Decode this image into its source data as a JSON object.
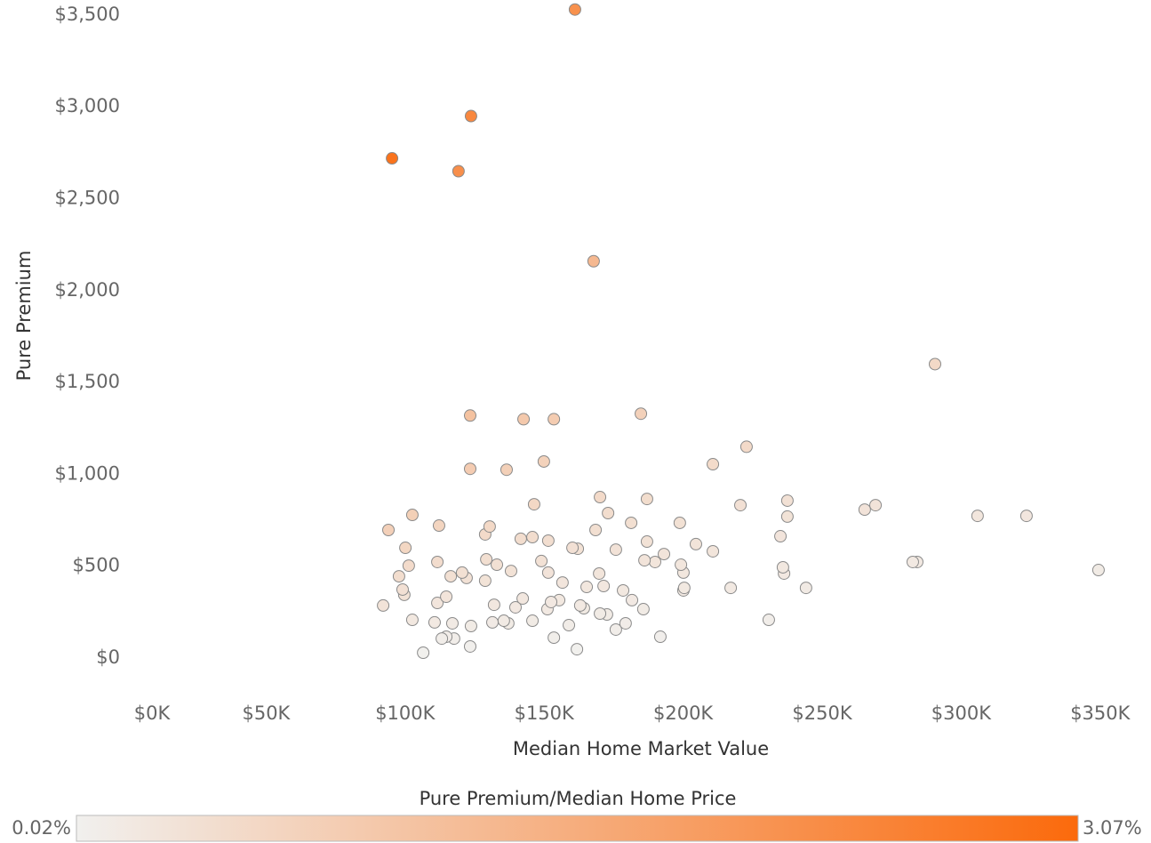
{
  "chart_data": {
    "type": "scatter",
    "x_label": "Median Home Market Value",
    "y_label": "Pure Premium",
    "x": [
      161100,
      123700,
      95300,
      119200,
      167800,
      290600,
      123400,
      142600,
      153500,
      184800,
      222800,
      123400,
      136500,
      149900,
      210700,
      170100,
      187000,
      146400,
      173000,
      237500,
      220600,
      265300,
      269200,
      102600,
      130400,
      112200,
      181300,
      198800,
      237500,
      305900,
      323500,
      94000,
      128800,
      141600,
      145800,
      151500,
      187000,
      168500,
      160200,
      162100,
      100100,
      175800,
      204600,
      210700,
      235000,
      193100,
      111600,
      129200,
      133000,
      149000,
      186100,
      189900,
      199200,
      101300,
      282600,
      284200,
      120500,
      122100,
      116400,
      128800,
      138100,
      151500,
      169800,
      200100,
      235900,
      236300,
      349400,
      97800,
      99100,
      99700,
      156600,
      165300,
      171400,
      178400,
      200400,
      200100,
      217100,
      244200,
      142300,
      114800,
      92100,
      111600,
      132000,
      139700,
      152500,
      155400,
      151200,
      163000,
      164300,
      181600,
      185700,
      170100,
      172600,
      102600,
      110600,
      117000,
      131400,
      135500,
      137100,
      145800,
      158900,
      179300,
      230800,
      123700,
      175800,
      113200,
      114800,
      117600,
      153500,
      191800,
      123400,
      106500,
      161800
    ],
    "values": [
      3530,
      2950,
      2720,
      2650,
      2160,
      1600,
      1320,
      1300,
      1300,
      1330,
      1150,
      1030,
      1025,
      1070,
      1055,
      876,
      866,
      837,
      789,
      857,
      832,
      808,
      832,
      779,
      716,
      721,
      736,
      736,
      770,
      774,
      774,
      697,
      673,
      649,
      658,
      639,
      634,
      697,
      600,
      595,
      600,
      590,
      620,
      581,
      663,
      566,
      523,
      537,
      508,
      528,
      532,
      523,
      508,
      503,
      523,
      523,
      465,
      436,
      445,
      421,
      474,
      465,
      460,
      465,
      494,
      460,
      479,
      445,
      373,
      344,
      411,
      387,
      392,
      368,
      382,
      368,
      382,
      382,
      324,
      334,
      286,
      300,
      290,
      276,
      305,
      315,
      266,
      286,
      271,
      315,
      266,
      242,
      237,
      208,
      194,
      189,
      194,
      203,
      189,
      203,
      179,
      189,
      208,
      174,
      155,
      106,
      116,
      106,
      111,
      116,
      63,
      29,
      48
    ],
    "xlim": [
      0,
      355000
    ],
    "ylim": [
      -200,
      3550
    ],
    "xticks": [
      {
        "value": 0,
        "label": "$0K"
      },
      {
        "value": 50000,
        "label": "$50K"
      },
      {
        "value": 100000,
        "label": "$100K"
      },
      {
        "value": 150000,
        "label": "$150K"
      },
      {
        "value": 200000,
        "label": "$200K"
      },
      {
        "value": 250000,
        "label": "$250K"
      },
      {
        "value": 300000,
        "label": "$300K"
      },
      {
        "value": 350000,
        "label": "$350K"
      }
    ],
    "yticks": [
      {
        "value": 0,
        "label": "$0"
      },
      {
        "value": 500,
        "label": "$500"
      },
      {
        "value": 1000,
        "label": "$1,000"
      },
      {
        "value": 1500,
        "label": "$1,500"
      },
      {
        "value": 2000,
        "label": "$2,000"
      },
      {
        "value": 2500,
        "label": "$2,500"
      },
      {
        "value": 3000,
        "label": "$3,000"
      },
      {
        "value": 3500,
        "label": "$3,500"
      }
    ],
    "grid": false,
    "colorbar": {
      "title": "Pure Premium/Median Home Price",
      "ticks": [
        {
          "value": 0.02,
          "label": "0.02%"
        },
        {
          "value": 3.07,
          "label": "3.07%"
        }
      ],
      "colors": [
        "#f1f0ee",
        "#fb6a0c"
      ]
    }
  }
}
